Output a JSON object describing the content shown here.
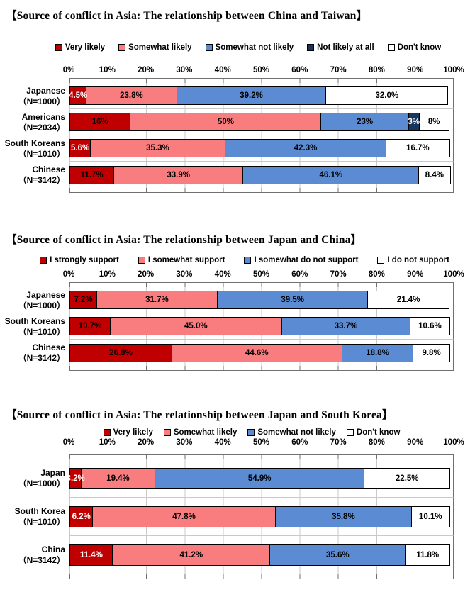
{
  "colors": {
    "very_likely_red": "#C00000",
    "somewhat_likely_pink": "#F97C7F",
    "somewhat_not_likely_blue": "#5B8BD3",
    "not_likely_navy": "#17365D",
    "dont_know_white": "#FFFFFF",
    "gridline": "#C9C9C9",
    "axis": "#707070",
    "bar_border": "#000000"
  },
  "axis_ticks": [
    "0%",
    "10%",
    "20%",
    "30%",
    "40%",
    "50%",
    "60%",
    "70%",
    "80%",
    "90%",
    "100%"
  ],
  "chart_data": [
    {
      "type": "bar",
      "stacked": true,
      "orientation": "horizontal",
      "title": "【Source of conflict in Asia: The relationship between China and Taiwan】",
      "xlim": [
        0,
        100
      ],
      "x_ticks": [
        "0%",
        "10%",
        "20%",
        "30%",
        "40%",
        "50%",
        "60%",
        "70%",
        "80%",
        "90%",
        "100%"
      ],
      "legend_position": "top-center",
      "grid": true,
      "legend": [
        {
          "label": "Very likely",
          "color": "#C00000"
        },
        {
          "label": "Somewhat likely",
          "color": "#F97C7F"
        },
        {
          "label": "Somewhat not likely",
          "color": "#5B8BD3"
        },
        {
          "label": "Not likely at all",
          "color": "#17365D"
        },
        {
          "label": "Don't know",
          "color": "#FFFFFF"
        }
      ],
      "rows": [
        {
          "name": "Japanese",
          "n": "（N=1000）",
          "segments": [
            {
              "series": 0,
              "value": 4.5,
              "label": "4.5%",
              "text_color": "#FFFFFF"
            },
            {
              "series": 1,
              "value": 23.8,
              "label": "23.8%",
              "text_color": "#000000"
            },
            {
              "series": 2,
              "value": 39.2,
              "label": "39.2%",
              "text_color": "#000000"
            },
            {
              "series": 4,
              "value": 32.0,
              "label": "32.0%",
              "text_color": "#000000"
            }
          ]
        },
        {
          "name": "Americans",
          "n": "（N=2034）",
          "segments": [
            {
              "series": 0,
              "value": 16,
              "label": "16%",
              "text_color": "#000000"
            },
            {
              "series": 1,
              "value": 50,
              "label": "50%",
              "text_color": "#000000"
            },
            {
              "series": 2,
              "value": 23,
              "label": "23%",
              "text_color": "#000000"
            },
            {
              "series": 3,
              "value": 3,
              "label": "3%",
              "text_color": "#FFFFFF"
            },
            {
              "series": 4,
              "value": 8,
              "label": "8%",
              "text_color": "#000000"
            }
          ]
        },
        {
          "name": "South Koreans",
          "n": "（N=1010）",
          "segments": [
            {
              "series": 0,
              "value": 5.6,
              "label": "5.6%",
              "text_color": "#FFFFFF"
            },
            {
              "series": 1,
              "value": 35.3,
              "label": "35.3%",
              "text_color": "#000000"
            },
            {
              "series": 2,
              "value": 42.3,
              "label": "42.3%",
              "text_color": "#000000"
            },
            {
              "series": 4,
              "value": 16.7,
              "label": "16.7%",
              "text_color": "#000000"
            }
          ]
        },
        {
          "name": "Chinese",
          "n": "（N=3142）",
          "segments": [
            {
              "series": 0,
              "value": 11.7,
              "label": "11.7%",
              "text_color": "#000000"
            },
            {
              "series": 1,
              "value": 33.9,
              "label": "33.9%",
              "text_color": "#000000"
            },
            {
              "series": 2,
              "value": 46.1,
              "label": "46.1%",
              "text_color": "#000000"
            },
            {
              "series": 4,
              "value": 8.4,
              "label": "8.4%",
              "text_color": "#000000"
            }
          ]
        }
      ]
    },
    {
      "type": "bar",
      "stacked": true,
      "orientation": "horizontal",
      "title": "【Source of conflict in Asia: The relationship between Japan and China】",
      "xlim": [
        0,
        100
      ],
      "x_ticks": [
        "0%",
        "10%",
        "20%",
        "30%",
        "40%",
        "50%",
        "60%",
        "70%",
        "80%",
        "90%",
        "100%"
      ],
      "legend_position": "top-center",
      "grid": true,
      "legend": [
        {
          "label": "I strongly support",
          "color": "#C00000"
        },
        {
          "label": "I somewhat support",
          "color": "#F97C7F"
        },
        {
          "label": "I somewhat do not support",
          "color": "#5B8BD3"
        },
        {
          "label": "I do not support",
          "color": "#FFFFFF"
        }
      ],
      "rows": [
        {
          "name": "Japanese",
          "n": "（N=1000）",
          "segments": [
            {
              "series": 0,
              "value": 7.2,
              "label": "7.2%",
              "text_color": "#000000"
            },
            {
              "series": 1,
              "value": 31.7,
              "label": "31.7%",
              "text_color": "#000000"
            },
            {
              "series": 2,
              "value": 39.5,
              "label": "39.5%",
              "text_color": "#000000"
            },
            {
              "series": 3,
              "value": 21.4,
              "label": "21.4%",
              "text_color": "#000000"
            }
          ]
        },
        {
          "name": "South Koreans",
          "n": "（N=1010）",
          "segments": [
            {
              "series": 0,
              "value": 10.7,
              "label": "10.7%",
              "text_color": "#000000"
            },
            {
              "series": 1,
              "value": 45.0,
              "label": "45.0%",
              "text_color": "#000000"
            },
            {
              "series": 2,
              "value": 33.7,
              "label": "33.7%",
              "text_color": "#000000"
            },
            {
              "series": 3,
              "value": 10.6,
              "label": "10.6%",
              "text_color": "#000000"
            }
          ]
        },
        {
          "name": "Chinese",
          "n": "（N=3142）",
          "segments": [
            {
              "series": 0,
              "value": 26.8,
              "label": "26.8%",
              "text_color": "#000000"
            },
            {
              "series": 1,
              "value": 44.6,
              "label": "44.6%",
              "text_color": "#000000"
            },
            {
              "series": 2,
              "value": 18.8,
              "label": "18.8%",
              "text_color": "#000000"
            },
            {
              "series": 3,
              "value": 9.8,
              "label": "9.8%",
              "text_color": "#000000"
            }
          ]
        }
      ]
    },
    {
      "type": "bar",
      "stacked": true,
      "orientation": "horizontal",
      "title": "【Source of conflict in Asia: The relationship between Japan and South Korea】",
      "xlim": [
        0,
        100
      ],
      "x_ticks": [
        "0%",
        "10%",
        "20%",
        "30%",
        "40%",
        "50%",
        "60%",
        "70%",
        "80%",
        "90%",
        "100%"
      ],
      "legend_position": "top-center",
      "grid": true,
      "legend": [
        {
          "label": "Very likely",
          "color": "#C00000"
        },
        {
          "label": "Somewhat likely",
          "color": "#F97C7F"
        },
        {
          "label": "Somewhat not likely",
          "color": "#5B8BD3"
        },
        {
          "label": "Don't know",
          "color": "#FFFFFF"
        }
      ],
      "rows": [
        {
          "name": "Japan",
          "n": "（N=1000）",
          "segments": [
            {
              "series": 0,
              "value": 3.2,
              "label": "3.2%",
              "text_color": "#FFFFFF"
            },
            {
              "series": 1,
              "value": 19.4,
              "label": "19.4%",
              "text_color": "#000000"
            },
            {
              "series": 2,
              "value": 54.9,
              "label": "54.9%",
              "text_color": "#000000"
            },
            {
              "series": 3,
              "value": 22.5,
              "label": "22.5%",
              "text_color": "#000000"
            }
          ]
        },
        {
          "name": "South Korea",
          "n": "（N=1010）",
          "segments": [
            {
              "series": 0,
              "value": 6.2,
              "label": "6.2%",
              "text_color": "#FFFFFF"
            },
            {
              "series": 1,
              "value": 47.8,
              "label": "47.8%",
              "text_color": "#000000"
            },
            {
              "series": 2,
              "value": 35.8,
              "label": "35.8%",
              "text_color": "#000000"
            },
            {
              "series": 3,
              "value": 10.1,
              "label": "10.1%",
              "text_color": "#000000"
            }
          ]
        },
        {
          "name": "China",
          "n": "（N=3142）",
          "segments": [
            {
              "series": 0,
              "value": 11.4,
              "label": "11.4%",
              "text_color": "#FFFFFF"
            },
            {
              "series": 1,
              "value": 41.2,
              "label": "41.2%",
              "text_color": "#000000"
            },
            {
              "series": 2,
              "value": 35.6,
              "label": "35.6%",
              "text_color": "#000000"
            },
            {
              "series": 3,
              "value": 11.8,
              "label": "11.8%",
              "text_color": "#000000"
            }
          ]
        }
      ]
    }
  ]
}
